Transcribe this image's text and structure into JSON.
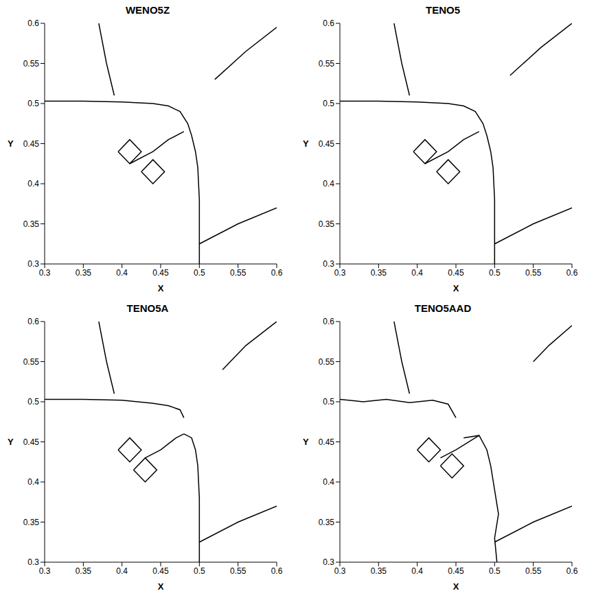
{
  "chart_data": [
    {
      "type": "line",
      "title": "WENO5Z",
      "x_label": "X",
      "y_label": "Y",
      "xlim": [
        0.3,
        0.6
      ],
      "ylim": [
        0.3,
        0.6
      ],
      "xticks": [
        0.3,
        0.35,
        0.4,
        0.45,
        0.5,
        0.55,
        0.6
      ],
      "yticks": [
        0.3,
        0.35,
        0.4,
        0.45,
        0.5,
        0.55,
        0.6
      ],
      "series": [
        {
          "color": "#000000",
          "x": [
            0.3,
            0.35,
            0.4,
            0.44,
            0.46,
            0.475,
            0.485,
            0.49,
            0.495,
            0.498,
            0.5,
            0.5
          ],
          "values": [
            0.503,
            0.503,
            0.502,
            0.5,
            0.497,
            0.49,
            0.475,
            0.46,
            0.44,
            0.42,
            0.38,
            0.3
          ]
        },
        {
          "color": "#000000",
          "x": [
            0.41,
            0.44,
            0.46,
            0.48
          ],
          "values": [
            0.425,
            0.44,
            0.455,
            0.465
          ]
        },
        {
          "color": "#000000",
          "x": [
            0.37,
            0.38,
            0.39
          ],
          "values": [
            0.6,
            0.55,
            0.51
          ]
        },
        {
          "color": "#000000",
          "x": [
            0.5,
            0.55,
            0.6
          ],
          "values": [
            0.325,
            0.35,
            0.37
          ]
        },
        {
          "color": "#000000",
          "x": [
            0.52,
            0.56,
            0.6
          ],
          "values": [
            0.53,
            0.565,
            0.595
          ]
        },
        {
          "color": "#000000",
          "x": [
            0.395,
            0.41,
            0.425,
            0.41,
            0.395
          ],
          "values": [
            0.44,
            0.455,
            0.44,
            0.425,
            0.44
          ]
        },
        {
          "color": "#000000",
          "x": [
            0.425,
            0.44,
            0.455,
            0.44,
            0.425
          ],
          "values": [
            0.415,
            0.43,
            0.415,
            0.4,
            0.415
          ]
        }
      ]
    },
    {
      "type": "line",
      "title": "TENO5",
      "x_label": "X",
      "y_label": "Y",
      "xlim": [
        0.3,
        0.6
      ],
      "ylim": [
        0.3,
        0.6
      ],
      "xticks": [
        0.3,
        0.35,
        0.4,
        0.45,
        0.5,
        0.55,
        0.6
      ],
      "yticks": [
        0.3,
        0.35,
        0.4,
        0.45,
        0.5,
        0.55,
        0.6
      ],
      "series": [
        {
          "color": "#000000",
          "x": [
            0.3,
            0.35,
            0.4,
            0.44,
            0.46,
            0.475,
            0.485,
            0.49,
            0.495,
            0.498,
            0.5,
            0.5
          ],
          "values": [
            0.503,
            0.503,
            0.502,
            0.5,
            0.497,
            0.49,
            0.475,
            0.46,
            0.44,
            0.42,
            0.38,
            0.3
          ]
        },
        {
          "color": "#000000",
          "x": [
            0.41,
            0.44,
            0.46,
            0.48
          ],
          "values": [
            0.425,
            0.44,
            0.455,
            0.465
          ]
        },
        {
          "color": "#000000",
          "x": [
            0.37,
            0.38,
            0.39
          ],
          "values": [
            0.6,
            0.55,
            0.51
          ]
        },
        {
          "color": "#000000",
          "x": [
            0.5,
            0.55,
            0.6
          ],
          "values": [
            0.325,
            0.35,
            0.37
          ]
        },
        {
          "color": "#000000",
          "x": [
            0.52,
            0.56,
            0.6
          ],
          "values": [
            0.535,
            0.57,
            0.6
          ]
        },
        {
          "color": "#000000",
          "x": [
            0.395,
            0.41,
            0.425,
            0.41,
            0.395
          ],
          "values": [
            0.44,
            0.455,
            0.44,
            0.425,
            0.44
          ]
        },
        {
          "color": "#000000",
          "x": [
            0.425,
            0.44,
            0.455,
            0.44,
            0.425
          ],
          "values": [
            0.415,
            0.43,
            0.415,
            0.4,
            0.415
          ]
        }
      ]
    },
    {
      "type": "line",
      "title": "TENO5A",
      "x_label": "X",
      "y_label": "Y",
      "xlim": [
        0.3,
        0.6
      ],
      "ylim": [
        0.3,
        0.6
      ],
      "xticks": [
        0.3,
        0.35,
        0.4,
        0.45,
        0.5,
        0.55,
        0.6
      ],
      "yticks": [
        0.3,
        0.35,
        0.4,
        0.45,
        0.5,
        0.55,
        0.6
      ],
      "series": [
        {
          "color": "#000000",
          "x": [
            0.3,
            0.35,
            0.4,
            0.44,
            0.46,
            0.475,
            0.48
          ],
          "values": [
            0.503,
            0.503,
            0.502,
            0.498,
            0.495,
            0.49,
            0.48
          ]
        },
        {
          "color": "#000000",
          "x": [
            0.48,
            0.49,
            0.495,
            0.498,
            0.5,
            0.5
          ],
          "values": [
            0.46,
            0.455,
            0.44,
            0.42,
            0.38,
            0.3
          ]
        },
        {
          "color": "#000000",
          "x": [
            0.43,
            0.45,
            0.47,
            0.48
          ],
          "values": [
            0.43,
            0.44,
            0.455,
            0.46
          ]
        },
        {
          "color": "#000000",
          "x": [
            0.37,
            0.38,
            0.39
          ],
          "values": [
            0.6,
            0.55,
            0.51
          ]
        },
        {
          "color": "#000000",
          "x": [
            0.5,
            0.55,
            0.6
          ],
          "values": [
            0.325,
            0.35,
            0.37
          ]
        },
        {
          "color": "#000000",
          "x": [
            0.53,
            0.56,
            0.6
          ],
          "values": [
            0.54,
            0.57,
            0.6
          ]
        },
        {
          "color": "#000000",
          "x": [
            0.395,
            0.41,
            0.425,
            0.41,
            0.395
          ],
          "values": [
            0.44,
            0.455,
            0.44,
            0.425,
            0.44
          ]
        },
        {
          "color": "#000000",
          "x": [
            0.415,
            0.43,
            0.445,
            0.43,
            0.415
          ],
          "values": [
            0.415,
            0.43,
            0.415,
            0.4,
            0.415
          ]
        }
      ]
    },
    {
      "type": "line",
      "title": "TENO5AAD",
      "x_label": "X",
      "y_label": "Y",
      "xlim": [
        0.3,
        0.6
      ],
      "ylim": [
        0.3,
        0.6
      ],
      "xticks": [
        0.3,
        0.35,
        0.4,
        0.45,
        0.5,
        0.55,
        0.6
      ],
      "yticks": [
        0.3,
        0.35,
        0.4,
        0.45,
        0.5,
        0.55,
        0.6
      ],
      "series": [
        {
          "color": "#000000",
          "x": [
            0.3,
            0.33,
            0.36,
            0.39,
            0.42,
            0.44,
            0.45
          ],
          "values": [
            0.503,
            0.5,
            0.503,
            0.499,
            0.502,
            0.497,
            0.48
          ]
        },
        {
          "color": "#000000",
          "x": [
            0.46,
            0.48,
            0.49,
            0.495,
            0.5,
            0.505,
            0.5,
            0.503
          ],
          "values": [
            0.455,
            0.458,
            0.44,
            0.42,
            0.39,
            0.36,
            0.33,
            0.3
          ]
        },
        {
          "color": "#000000",
          "x": [
            0.43,
            0.45,
            0.47,
            0.48
          ],
          "values": [
            0.43,
            0.44,
            0.452,
            0.458
          ]
        },
        {
          "color": "#000000",
          "x": [
            0.37,
            0.38,
            0.39
          ],
          "values": [
            0.6,
            0.55,
            0.51
          ]
        },
        {
          "color": "#000000",
          "x": [
            0.5,
            0.55,
            0.6
          ],
          "values": [
            0.325,
            0.35,
            0.37
          ]
        },
        {
          "color": "#000000",
          "x": [
            0.55,
            0.57,
            0.6
          ],
          "values": [
            0.55,
            0.57,
            0.595
          ]
        },
        {
          "color": "#000000",
          "x": [
            0.4,
            0.415,
            0.43,
            0.415,
            0.4
          ],
          "values": [
            0.44,
            0.455,
            0.44,
            0.425,
            0.44
          ]
        },
        {
          "color": "#000000",
          "x": [
            0.43,
            0.445,
            0.46,
            0.445,
            0.43
          ],
          "values": [
            0.42,
            0.435,
            0.42,
            0.405,
            0.42
          ]
        }
      ]
    }
  ]
}
